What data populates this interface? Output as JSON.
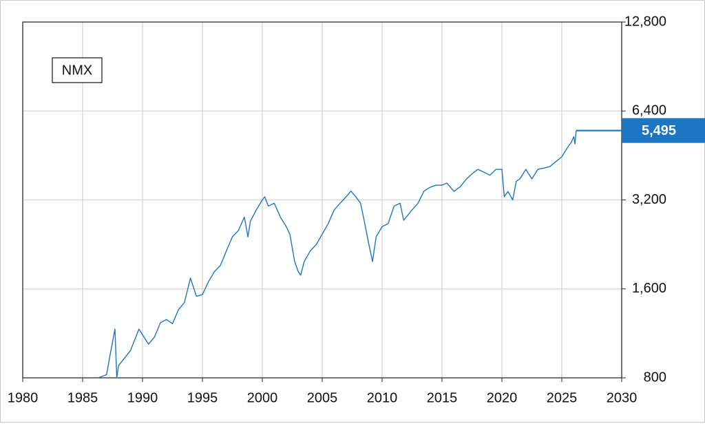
{
  "chart_data": {
    "type": "line",
    "x": [
      1986.3,
      1987.0,
      1987.3,
      1987.7,
      1987.85,
      1988.0,
      1989.0,
      1989.7,
      1990.5,
      1991.0,
      1991.5,
      1992.0,
      1992.5,
      1993.0,
      1993.5,
      1994.0,
      1994.5,
      1995.0,
      1995.5,
      1996.0,
      1996.5,
      1997.0,
      1997.5,
      1998.0,
      1998.5,
      1998.8,
      1999.0,
      1999.5,
      2000.0,
      2000.2,
      2000.5,
      2001.0,
      2001.5,
      2002.0,
      2002.3,
      2002.7,
      2003.0,
      2003.2,
      2003.5,
      2004.0,
      2004.5,
      2005.0,
      2005.5,
      2006.0,
      2006.5,
      2007.0,
      2007.4,
      2007.8,
      2008.2,
      2008.5,
      2008.9,
      2009.2,
      2009.5,
      2010.0,
      2010.5,
      2011.0,
      2011.5,
      2011.8,
      2012.5,
      2013.0,
      2013.5,
      2014.0,
      2014.5,
      2015.0,
      2015.4,
      2016.0,
      2016.5,
      2017.0,
      2017.5,
      2018.0,
      2018.5,
      2019.0,
      2019.5,
      2020.0,
      2020.2,
      2020.5,
      2020.9,
      2021.2,
      2021.5,
      2022.0,
      2022.5,
      2023.0,
      2023.5,
      2024.0,
      2024.5,
      2025.0,
      2025.5,
      2025.8,
      2026.0,
      2026.1,
      2026.2
    ],
    "series": [
      {
        "name": "NMX",
        "color": "#1c75c2",
        "values": [
          800,
          820,
          960,
          1170,
          800,
          880,
          990,
          1170,
          1040,
          1100,
          1230,
          1260,
          1220,
          1360,
          1440,
          1740,
          1510,
          1530,
          1690,
          1830,
          1920,
          2150,
          2400,
          2520,
          2800,
          2400,
          2710,
          2960,
          3200,
          3280,
          3050,
          3120,
          2800,
          2600,
          2450,
          1980,
          1830,
          1780,
          1980,
          2150,
          2260,
          2450,
          2660,
          2960,
          3120,
          3280,
          3430,
          3280,
          3120,
          2730,
          2260,
          1980,
          2400,
          2600,
          2660,
          3050,
          3120,
          2730,
          2960,
          3120,
          3430,
          3530,
          3590,
          3590,
          3650,
          3420,
          3540,
          3750,
          3920,
          4060,
          3970,
          3880,
          4060,
          4060,
          3280,
          3420,
          3200,
          3700,
          3770,
          4060,
          3770,
          4060,
          4100,
          4150,
          4310,
          4480,
          4830,
          5020,
          5240,
          4950,
          5495
        ]
      }
    ],
    "last_value_label": "5,495",
    "xlim": [
      1980,
      2030
    ],
    "xticks": [
      1980,
      1985,
      1990,
      1995,
      2000,
      2005,
      2010,
      2015,
      2020,
      2025,
      2030
    ],
    "ylim": [
      800,
      12800
    ],
    "yticks": [
      800,
      {
        "value": 1600,
        "label": "1,600"
      },
      {
        "value": 3200,
        "label": "3,200"
      },
      {
        "value": 6400,
        "label": "6,400"
      },
      {
        "value": 12800,
        "label": "12,800"
      }
    ],
    "log_scale": true,
    "grid": true,
    "legend_position": "upper left"
  }
}
